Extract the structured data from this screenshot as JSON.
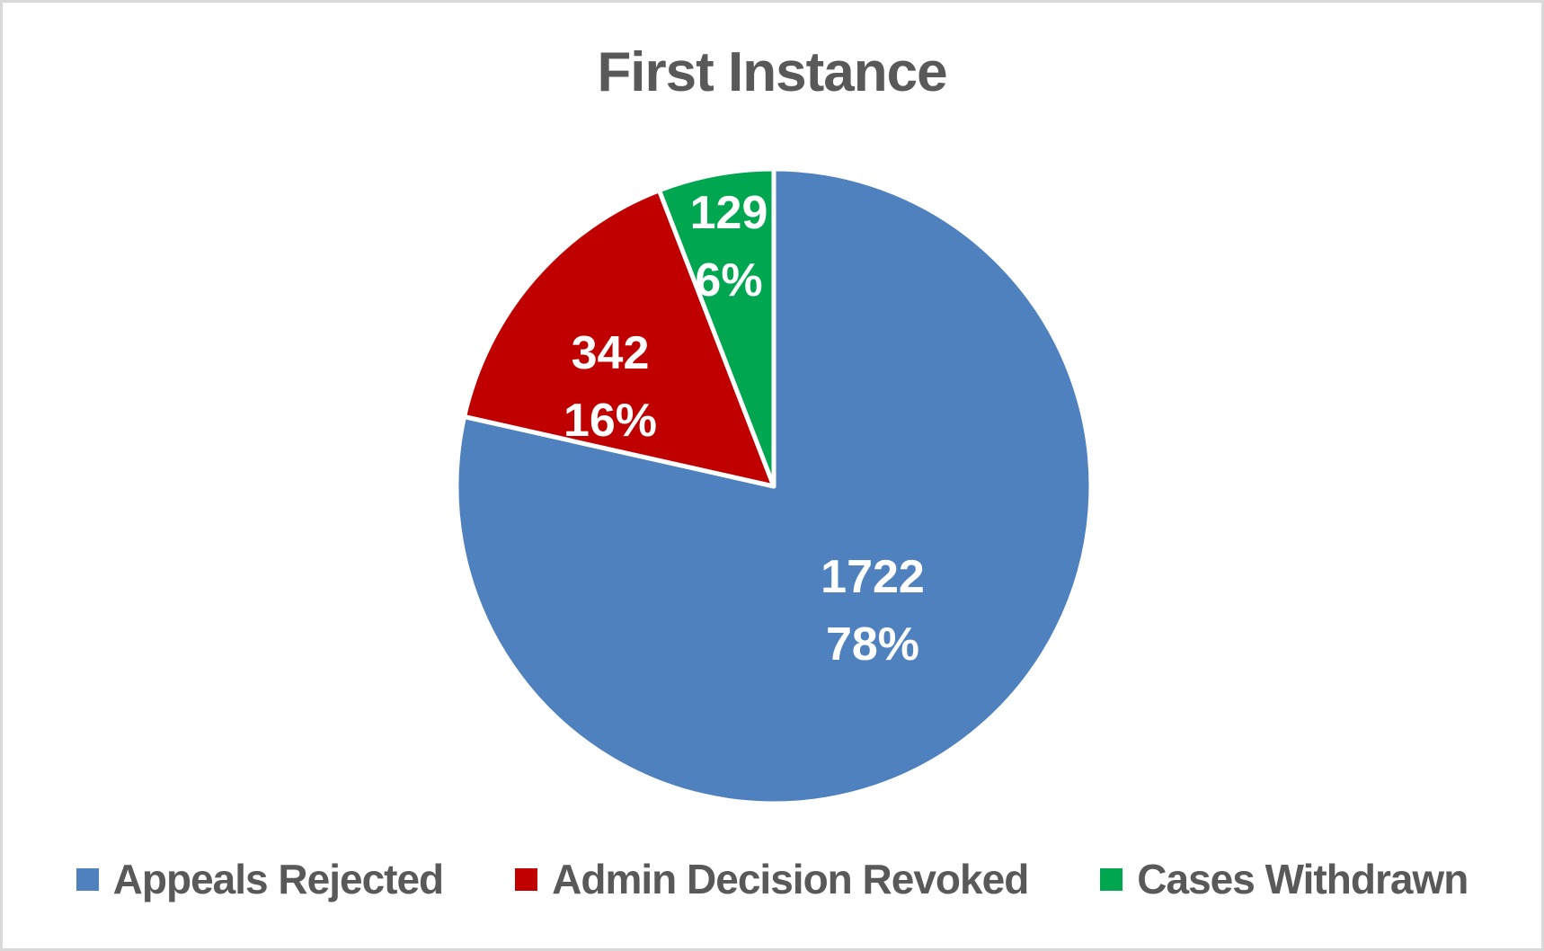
{
  "window": {
    "background_color": "#ffffff",
    "border_color": "#d9d9d9"
  },
  "chart_data": {
    "type": "pie",
    "title": "First Instance",
    "title_color": "#595959",
    "legend_position": "bottom",
    "legend_text_color": "#595959",
    "data_label_color": "#ffffff",
    "slice_separator_color": "#ffffff",
    "start_angle_deg": 0,
    "direction": "clockwise",
    "slices": [
      {
        "label": "Appeals Rejected",
        "value": 1722,
        "percent_label": "78%",
        "color": "#4e81bd"
      },
      {
        "label": "Admin Decision Revoked",
        "value": 342,
        "percent_label": "16%",
        "color": "#c00000"
      },
      {
        "label": "Cases Withdrawn",
        "value": 129,
        "percent_label": "6%",
        "color": "#00a650"
      }
    ]
  }
}
